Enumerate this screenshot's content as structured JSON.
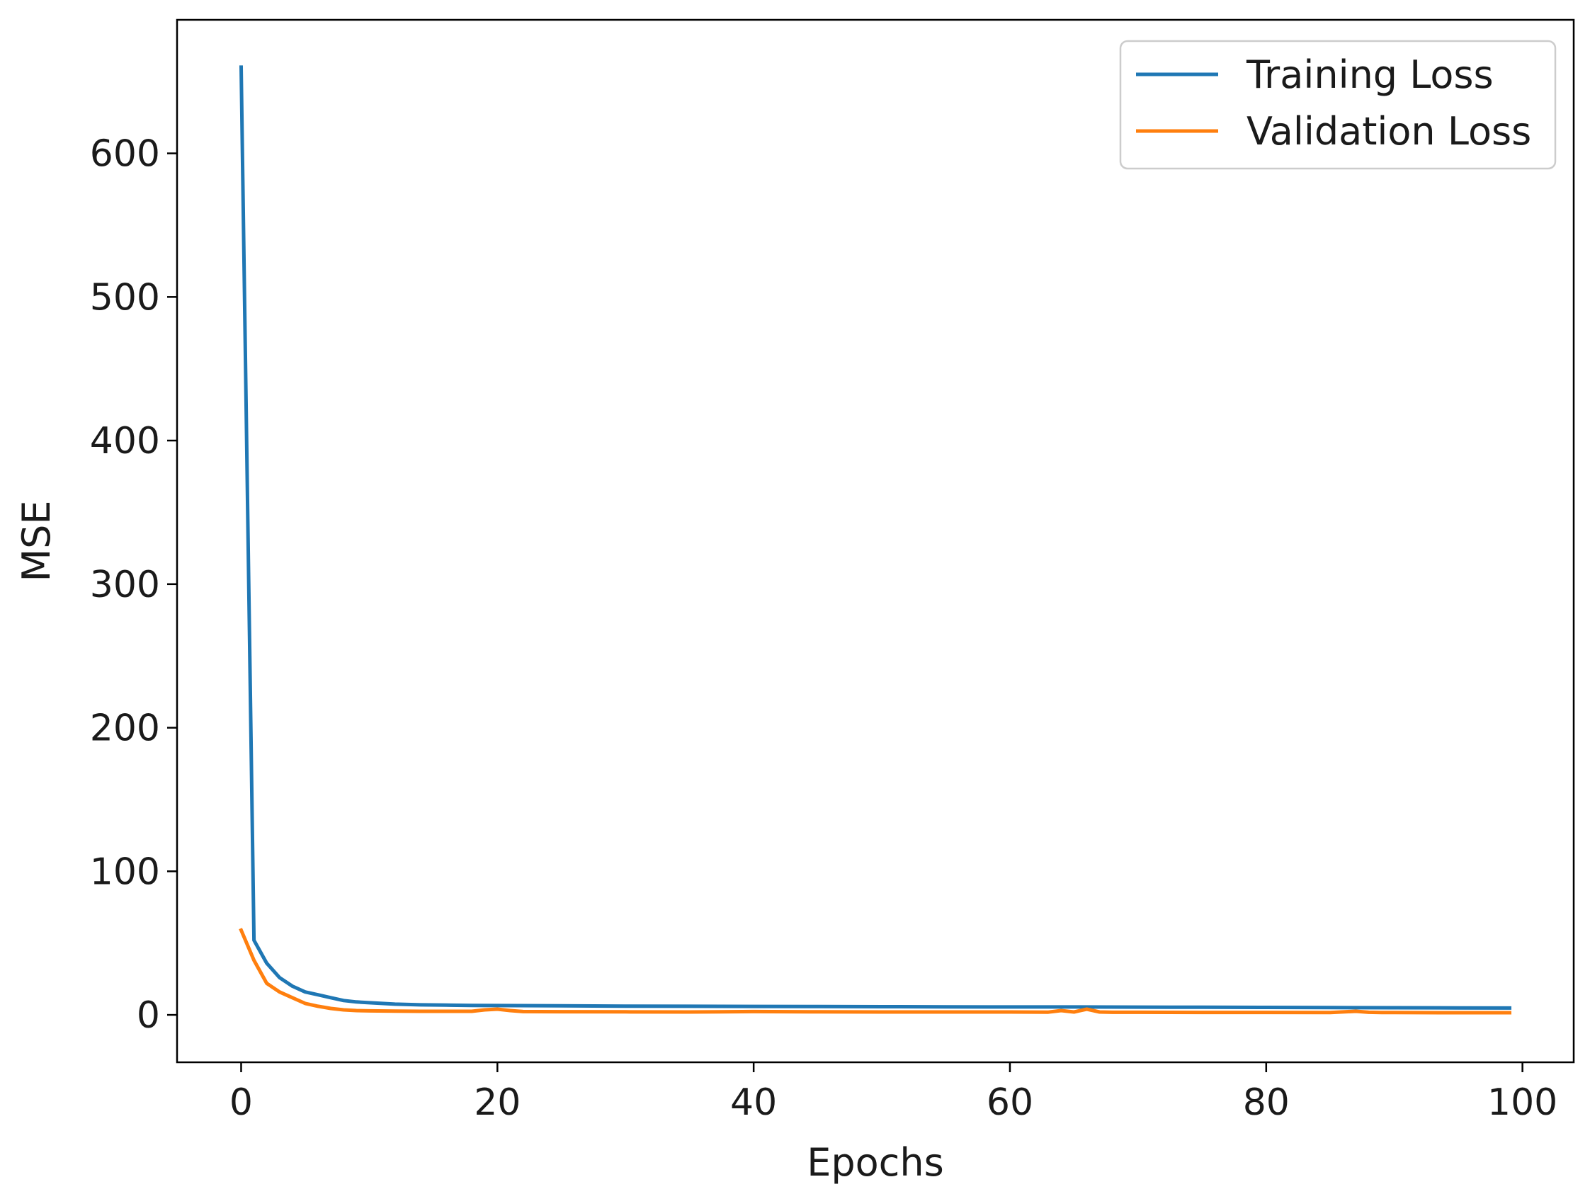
{
  "chart_data": {
    "type": "line",
    "xlabel": "Epochs",
    "ylabel": "MSE",
    "xlim": [
      -5,
      104
    ],
    "ylim": [
      -33,
      693
    ],
    "xticks": [
      0,
      20,
      40,
      60,
      80,
      100
    ],
    "yticks": [
      0,
      100,
      200,
      300,
      400,
      500,
      600
    ],
    "grid": false,
    "legend_placement": "top-right",
    "series": [
      {
        "name": "Training Loss",
        "color": "#1f77b4",
        "x": [
          0,
          1,
          2,
          3,
          4,
          5,
          6,
          7,
          8,
          9,
          10,
          12,
          14,
          16,
          18,
          20,
          25,
          30,
          35,
          40,
          45,
          50,
          55,
          60,
          65,
          70,
          75,
          80,
          85,
          90,
          95,
          99
        ],
        "y": [
          660,
          52,
          36,
          26,
          20,
          16,
          14,
          12,
          10,
          9,
          8.5,
          7.5,
          7,
          6.8,
          6.6,
          6.5,
          6.3,
          6.1,
          6,
          5.9,
          5.8,
          5.7,
          5.6,
          5.5,
          5.5,
          5.4,
          5.3,
          5.2,
          5.1,
          5,
          4.9,
          4.8
        ]
      },
      {
        "name": "Validation Loss",
        "color": "#ff7f0e",
        "x": [
          0,
          1,
          2,
          3,
          4,
          5,
          6,
          7,
          8,
          9,
          10,
          12,
          14,
          16,
          18,
          19,
          20,
          21,
          22,
          25,
          30,
          35,
          40,
          45,
          50,
          55,
          60,
          63,
          64,
          65,
          66,
          67,
          68,
          70,
          75,
          80,
          85,
          87,
          88,
          89,
          90,
          95,
          99
        ],
        "y": [
          59,
          38,
          22,
          16,
          12,
          8,
          6,
          4.5,
          3.5,
          3,
          2.8,
          2.6,
          2.5,
          2.5,
          2.5,
          3.5,
          4,
          3,
          2.3,
          2.2,
          2.1,
          2,
          2.3,
          2.1,
          2,
          2,
          2,
          1.9,
          3,
          2,
          4,
          2,
          1.8,
          1.8,
          1.7,
          1.7,
          1.6,
          2.5,
          1.8,
          1.6,
          1.6,
          1.5,
          1.5
        ]
      }
    ]
  }
}
